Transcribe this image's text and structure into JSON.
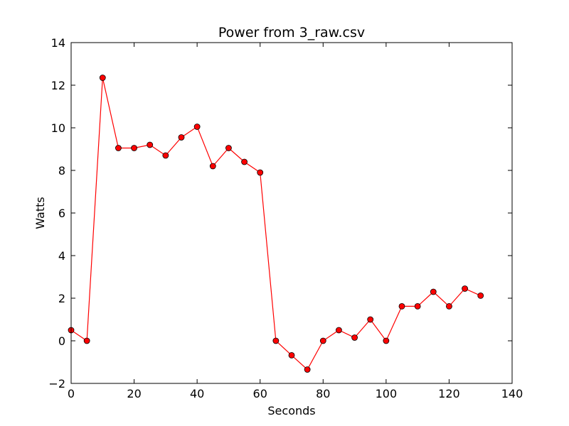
{
  "chart_data": {
    "type": "line",
    "title": "Power from 3_raw.csv",
    "xlabel": "Seconds",
    "ylabel": "Watts",
    "xlim": [
      0,
      140
    ],
    "ylim": [
      -2,
      14
    ],
    "xticks": [
      0,
      20,
      40,
      60,
      80,
      100,
      120,
      140
    ],
    "yticks": [
      -2,
      0,
      2,
      4,
      6,
      8,
      10,
      12,
      14
    ],
    "xtick_labels": [
      "0",
      "20",
      "40",
      "60",
      "80",
      "100",
      "120",
      "140"
    ],
    "ytick_labels": [
      "−2",
      "0",
      "2",
      "4",
      "6",
      "8",
      "10",
      "12",
      "14"
    ],
    "grid": false,
    "series": [
      {
        "color": "#ff0000",
        "marker": "circle",
        "x": [
          0,
          5,
          10,
          15,
          20,
          25,
          30,
          35,
          40,
          45,
          50,
          55,
          60,
          65,
          70,
          75,
          80,
          85,
          90,
          95,
          100,
          105,
          110,
          115,
          120,
          125,
          130
        ],
        "y": [
          0.5,
          0,
          12.35,
          9.05,
          9.05,
          9.2,
          8.7,
          9.55,
          10.05,
          8.2,
          9.05,
          8.4,
          7.9,
          0,
          -0.68,
          -1.35,
          0,
          0.5,
          0.15,
          1.0,
          0,
          1.62,
          1.62,
          2.3,
          1.62,
          2.45,
          2.12
        ]
      }
    ]
  }
}
